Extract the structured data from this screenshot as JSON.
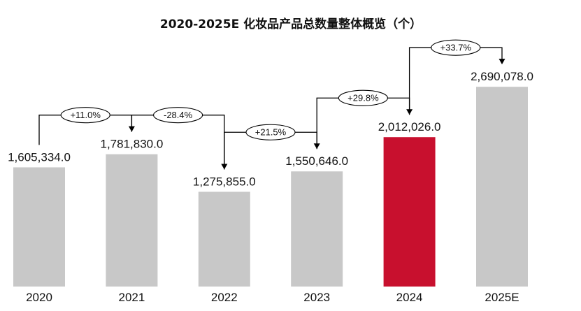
{
  "chart_data": {
    "type": "bar",
    "title": "2020-2025E 化妆品产品总数量整体概览（个）",
    "categories": [
      "2020",
      "2021",
      "2022",
      "2023",
      "2024",
      "2025E"
    ],
    "values": [
      1605334.0,
      1781830.0,
      1275855.0,
      1550646.0,
      2012026.0,
      2690078.0
    ],
    "value_labels": [
      "1,605,334.0",
      "1,781,830.0",
      "1,275,855.0",
      "1,550,646.0",
      "2,012,026.0",
      "2,690,078.0"
    ],
    "changes": [
      "+11.0%",
      "-28.4%",
      "+21.5%",
      "+29.8%",
      "+33.7%"
    ],
    "highlight_index": 4,
    "ylim": [
      0,
      3200000
    ],
    "grid": false,
    "legend": "none",
    "colors": {
      "bar": "#c8c8c8",
      "highlight": "#c8102e"
    }
  }
}
